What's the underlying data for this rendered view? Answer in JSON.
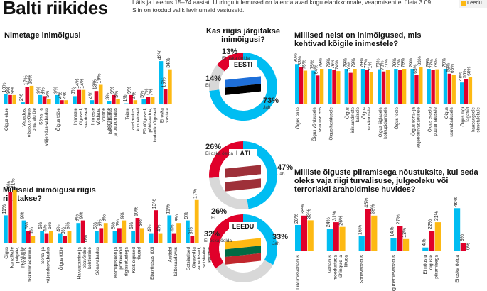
{
  "title": "Balti riikides",
  "subtitle_lines": [
    "Lätis ja Leedus 15–74 aastat. Uuringu tulemused on laiendatavad kogu elanikkonnale, veaprotsent ei ületa 3.09.",
    "Siin on toodud valik levinumaid vastuseid."
  ],
  "legend": [
    {
      "name": "Leedu",
      "color": "#fdb913"
    }
  ],
  "colors": {
    "estonia": "#00bdf2",
    "latvia": "#e0002a",
    "lithuania": "#fdb913",
    "dont_know": "#d8d8d8"
  },
  "chart_data": [
    {
      "type": "bar",
      "title": "Nimetage inimõigusi",
      "categories": [
        "Õigus elule",
        "Vabadus, otsustus-õigus oma elu üle",
        "Sõna- ja väljendus-vabadus",
        "Õigus tööle",
        "Inimeste õigused, seadused",
        "Inimeste võrdsus, võrdne kohtlemine",
        "Isikuvabadus ja puutumatus",
        "Teiste austamine, kohustused",
        "Põhiõigused, põhiseadus, kodanikuõigused",
        "Ei oska vastata"
      ],
      "series": [
        {
          "values": [
            10,
            2,
            9,
            9,
            8,
            4,
            3,
            1,
            5,
            42
          ]
        },
        {
          "values": [
            9,
            17,
            8,
            4,
            14,
            13,
            9,
            9,
            7,
            15
          ]
        },
        {
          "values": [
            9,
            18,
            5,
            4,
            14,
            19,
            5,
            4,
            7,
            34
          ]
        }
      ]
    },
    {
      "type": "bar",
      "title": "Milliseid inimõigusi riigis rikutakse?",
      "categories": [
        "Õigus korralikule palgale, pensionile",
        "Võrdsus, diskrimineerimine",
        "Sõna- ja väljendusvabadus",
        "Õigus tööle",
        "Halvustamine ja ebavõrdne kohtlemine",
        "Sõnavabadus",
        "Korruptsioon ja probleemid riigiasutustega",
        "Kõik õigused rikutud",
        "Ebavõrdsus tööl",
        "Arstiabi kättesaadavus",
        "Sotsiaalsed õigused ja vabadused, sotsiaalne kaitstus"
      ],
      "series": [
        {
          "values": [
            11,
            9,
            5,
            4,
            8,
            5,
            5,
            5,
            4,
            11,
            9
          ]
        },
        {
          "values": [
            20,
            5,
            4,
            3,
            9,
            6,
            6,
            10,
            13,
            4,
            3
          ]
        },
        {
          "values": [
            21,
            3,
            5,
            5,
            0,
            8,
            9,
            6,
            4,
            8,
            17
          ]
        }
      ]
    },
    {
      "type": "pie",
      "title": "Kas riigis järgitakse inimõigusi?",
      "pies": [
        {
          "country": "EESTI",
          "slices": [
            {
              "label": "Jah",
              "value": 73
            },
            {
              "label": "Ei",
              "value": 14
            },
            {
              "label": "Ei oska öelda",
              "value": 13
            }
          ]
        },
        {
          "country": "LÄTI",
          "slices": [
            {
              "label": "Jah",
              "value": 47
            },
            {
              "label": "Ei",
              "value": 26
            },
            {
              "label": "Ei oska öelda",
              "value": 26
            }
          ]
        },
        {
          "country": "LEEDU",
          "slices": [
            {
              "label": "Jah",
              "value": 33
            },
            {
              "label": "Ei",
              "value": 35
            },
            {
              "label": "Ei oska öelda",
              "value": 32
            }
          ]
        }
      ]
    },
    {
      "type": "bar",
      "title": "Millised neist on inimõigused, mis kehtivad kõigile inimestele?",
      "categories": [
        "Õigus elule",
        "Õigus võrdsusele seaduse ees",
        "Õigus haridusele",
        "Õigus isikuandmete kaitsele",
        "Õigus perekonnale",
        "Õigus õiglasele kohtupidamisele",
        "Õigus tööle",
        "Õigus sõna- ja väljendusvabadusele",
        "Õigus eraelu puutumatusele",
        "Õigus usuvabadusele",
        "Õigus riigi tagatud kaasaegsele sissetulekule"
      ],
      "series": [
        {
          "values": [
            90,
            75,
            79,
            79,
            79,
            78,
            79,
            79,
            79,
            79,
            48
          ]
        },
        {
          "values": [
            83,
            64,
            76,
            70,
            77,
            73,
            77,
            65,
            77,
            68,
            55
          ]
        },
        {
          "values": [
            75,
            79,
            74,
            79,
            71,
            77,
            79,
            83,
            78,
            66,
            60
          ]
        }
      ]
    },
    {
      "type": "bar",
      "title": "Milliste õiguste piiramisega nõustuksite, kui seda oleks vaja riigi turvalisuse, julgeoleku või terroriakti ärahoidmise huvides?",
      "categories": [
        "Liikumisvabadus",
        "Vabadus moodustada ühinguid ja liituda",
        "Sõnavabadus",
        "Kogunemisvabadus",
        "Ei nõustu õiguste piiramisega",
        "Ei oska öelda"
      ],
      "series": [
        {
          "values": [
            28,
            24,
            16,
            14,
            4,
            46
          ]
        },
        {
          "values": [
            38,
            31,
            45,
            27,
            22,
            9
          ]
        },
        {
          "values": [
            33,
            26,
            38,
            13,
            31,
            0
          ]
        }
      ]
    }
  ]
}
